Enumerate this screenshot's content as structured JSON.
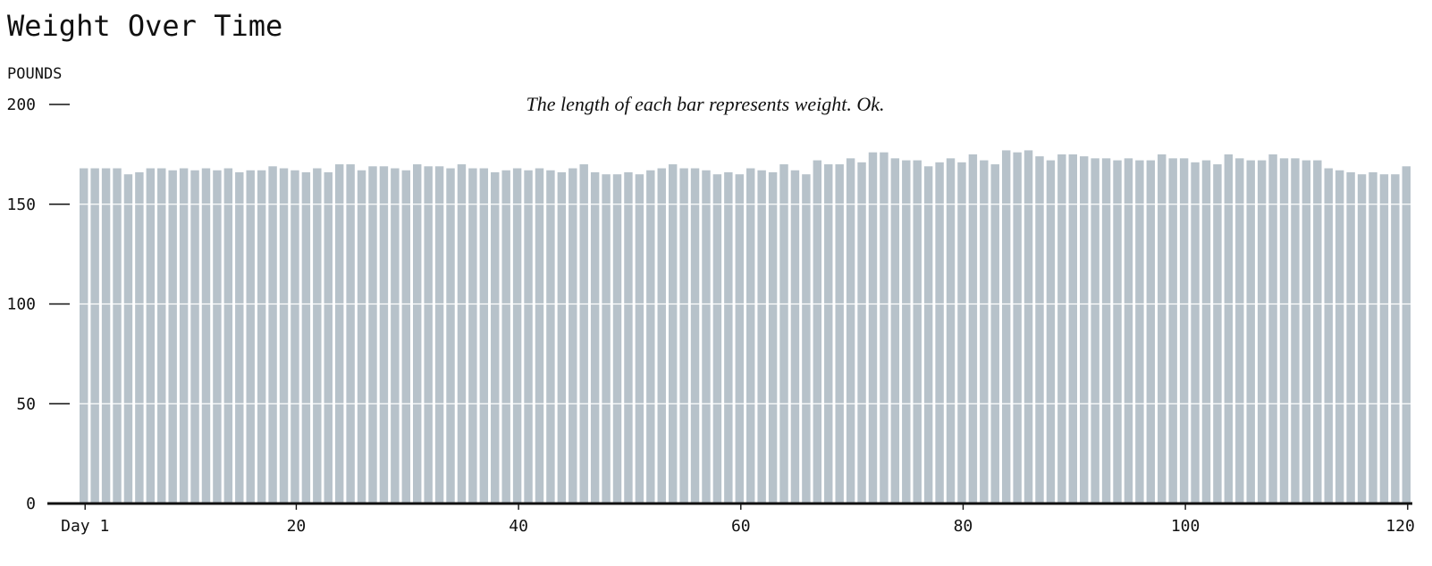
{
  "chart_data": {
    "type": "bar",
    "title": "Weight Over Time",
    "ylabel": "POUNDS",
    "xlabel": "",
    "annotation": "The length of each bar represents weight. Ok.",
    "ylim": [
      0,
      200
    ],
    "xlim": [
      1,
      120
    ],
    "y_ticks": [
      {
        "value": 0,
        "label": "0"
      },
      {
        "value": 50,
        "label": "50"
      },
      {
        "value": 100,
        "label": "100"
      },
      {
        "value": 150,
        "label": "150"
      },
      {
        "value": 200,
        "label": "200"
      }
    ],
    "x_ticks": [
      {
        "value": 1,
        "label": "Day 1"
      },
      {
        "value": 20,
        "label": "20"
      },
      {
        "value": 40,
        "label": "40"
      },
      {
        "value": 60,
        "label": "60"
      },
      {
        "value": 80,
        "label": "80"
      },
      {
        "value": 100,
        "label": "100"
      },
      {
        "value": 120,
        "label": "120"
      }
    ],
    "grid": true,
    "bar_color": "#b7c2ca",
    "axis_color": "#111111",
    "values": [
      168,
      168,
      168,
      168,
      165,
      166,
      168,
      168,
      167,
      168,
      167,
      168,
      167,
      168,
      166,
      167,
      167,
      169,
      168,
      167,
      166,
      168,
      166,
      170,
      170,
      167,
      169,
      169,
      168,
      167,
      170,
      169,
      169,
      168,
      170,
      168,
      168,
      166,
      167,
      168,
      167,
      168,
      167,
      166,
      168,
      170,
      166,
      165,
      165,
      166,
      165,
      167,
      168,
      170,
      168,
      168,
      167,
      165,
      166,
      165,
      168,
      167,
      166,
      170,
      167,
      165,
      172,
      170,
      170,
      173,
      171,
      176,
      176,
      173,
      172,
      172,
      169,
      171,
      173,
      171,
      175,
      172,
      170,
      177,
      176,
      177,
      174,
      172,
      175,
      175,
      174,
      173,
      173,
      172,
      173,
      172,
      172,
      175,
      173,
      173,
      171,
      172,
      170,
      175,
      173,
      172,
      172,
      175,
      173,
      173,
      172,
      172,
      168,
      167,
      166,
      165,
      166,
      165,
      165,
      169
    ]
  }
}
